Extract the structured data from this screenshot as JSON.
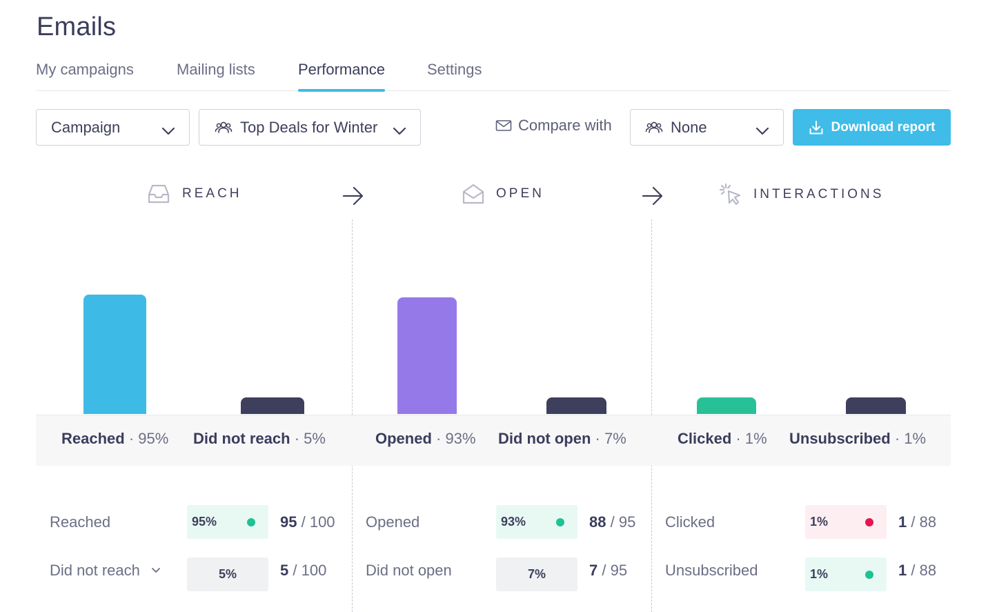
{
  "page": {
    "title": "Emails"
  },
  "tabs": [
    {
      "label": "My campaigns",
      "active": false
    },
    {
      "label": "Mailing lists",
      "active": false
    },
    {
      "label": "Performance",
      "active": true
    },
    {
      "label": "Settings",
      "active": false
    }
  ],
  "filters": {
    "type_select": {
      "value": "Campaign",
      "icon": "chevron-down-icon"
    },
    "campaign_select": {
      "value": "Top Deals for Winter",
      "icon": "users-icon"
    },
    "compare_label": "Compare with",
    "compare_select": {
      "value": "None",
      "icon": "users-icon"
    },
    "download_label": "Download report"
  },
  "colors": {
    "accent": "#3fbce8",
    "reach": "#3dbbe6",
    "open": "#9679e8",
    "clicked": "#27c198",
    "negative": "#3e3f5c",
    "good_dot": "#1fc195",
    "bad_dot": "#e4164f"
  },
  "stages": [
    {
      "title": "REACH",
      "icon": "inbox-icon",
      "bars": [
        {
          "label": "Reached",
          "percent": "95%",
          "value": 95,
          "color": "#3dbbe6"
        },
        {
          "label": "Did not reach",
          "percent": "5%",
          "value": 5,
          "color": "#3e3f5c"
        }
      ],
      "rows": [
        {
          "label": "Reached",
          "pill": "95%",
          "status": "good",
          "count": "95",
          "total": "100"
        },
        {
          "label": "Did not reach",
          "pill": "5%",
          "status": "neutral",
          "count": "5",
          "total": "100",
          "expandable": true
        }
      ]
    },
    {
      "title": "OPEN",
      "icon": "open-envelope-icon",
      "bars": [
        {
          "label": "Opened",
          "percent": "93%",
          "value": 93,
          "color": "#9679e8"
        },
        {
          "label": "Did not open",
          "percent": "7%",
          "value": 7,
          "color": "#3e3f5c"
        }
      ],
      "rows": [
        {
          "label": "Opened",
          "pill": "93%",
          "status": "good",
          "count": "88",
          "total": "95"
        },
        {
          "label": "Did not open",
          "pill": "7%",
          "status": "neutral",
          "count": "7",
          "total": "95"
        }
      ]
    },
    {
      "title": "INTERACTIONS",
      "icon": "cursor-click-icon",
      "bars": [
        {
          "label": "Clicked",
          "percent": "1%",
          "value": 1,
          "color": "#27c198"
        },
        {
          "label": "Unsubscribed",
          "percent": "1%",
          "value": 1,
          "color": "#3e3f5c"
        }
      ],
      "rows": [
        {
          "label": "Clicked",
          "pill": "1%",
          "status": "bad",
          "count": "1",
          "total": "88"
        },
        {
          "label": "Unsubscribed",
          "pill": "1%",
          "status": "good",
          "count": "1",
          "total": "88"
        }
      ]
    }
  ]
}
